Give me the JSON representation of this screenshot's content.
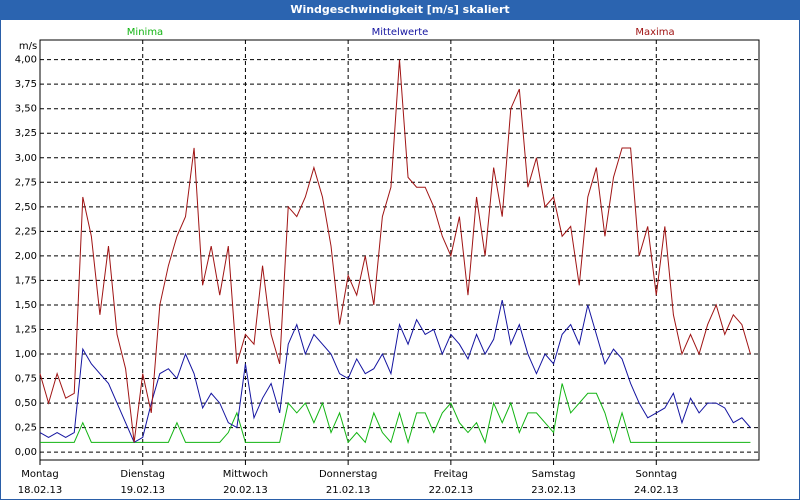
{
  "chart_data": {
    "type": "line",
    "title": "Windgeschwindigkeit [m/s] skaliert",
    "y_label": "m/s",
    "days": [
      "Montag",
      "Dienstag",
      "Mittwoch",
      "Donnerstag",
      "Freitag",
      "Samstag",
      "Sonntag"
    ],
    "dates": [
      "18.02.13",
      "19.02.13",
      "20.02.13",
      "21.02.13",
      "22.02.13",
      "23.02.13",
      "24.02.13"
    ],
    "x": [
      0,
      2,
      4,
      6,
      8,
      10,
      12,
      14,
      16,
      18,
      20,
      22,
      24,
      26,
      28,
      30,
      32,
      34,
      36,
      38,
      40,
      42,
      44,
      46,
      48,
      50,
      52,
      54,
      56,
      58,
      60,
      62,
      64,
      66,
      68,
      70,
      72,
      74,
      76,
      78,
      80,
      82,
      84,
      86,
      88,
      90,
      92,
      94,
      96,
      98,
      100,
      102,
      104,
      106,
      108,
      110,
      112,
      114,
      116,
      118,
      120,
      122,
      124,
      126,
      128,
      130,
      132,
      134,
      136,
      138,
      140,
      142,
      144,
      146,
      148,
      150,
      152,
      154,
      156,
      158,
      160,
      162,
      164,
      166
    ],
    "xlim": [
      0,
      168
    ],
    "xticks": [
      0,
      24,
      48,
      72,
      96,
      120,
      144
    ],
    "ylim": [
      -0.08,
      4.2
    ],
    "yticks": [
      {
        "value": 0,
        "label": "0,00"
      },
      {
        "value": 0.25,
        "label": "0,25"
      },
      {
        "value": 0.5,
        "label": "0,50"
      },
      {
        "value": 0.75,
        "label": "0,75"
      },
      {
        "value": 1,
        "label": "1,00"
      },
      {
        "value": 1.25,
        "label": "1,25"
      },
      {
        "value": 1.5,
        "label": "1,50"
      },
      {
        "value": 1.75,
        "label": "1,75"
      },
      {
        "value": 2,
        "label": "2,00"
      },
      {
        "value": 2.25,
        "label": "2,25"
      },
      {
        "value": 2.5,
        "label": "2,50"
      },
      {
        "value": 2.75,
        "label": "2,75"
      },
      {
        "value": 3,
        "label": "3,00"
      },
      {
        "value": 3.25,
        "label": "3,25"
      },
      {
        "value": 3.5,
        "label": "3,50"
      },
      {
        "value": 3.75,
        "label": "3,75"
      },
      {
        "value": 4,
        "label": "4,00"
      }
    ],
    "grid": true,
    "series": [
      {
        "name": "Minima",
        "color": "#12b412",
        "values": [
          0.1,
          0.1,
          0.1,
          0.1,
          0.1,
          0.3,
          0.1,
          0.1,
          0.1,
          0.1,
          0.1,
          0.1,
          0.1,
          0.1,
          0.1,
          0.1,
          0.3,
          0.1,
          0.1,
          0.1,
          0.1,
          0.1,
          0.2,
          0.4,
          0.1,
          0.1,
          0.1,
          0.1,
          0.1,
          0.5,
          0.4,
          0.5,
          0.3,
          0.5,
          0.2,
          0.4,
          0.1,
          0.2,
          0.1,
          0.4,
          0.2,
          0.1,
          0.4,
          0.1,
          0.4,
          0.4,
          0.2,
          0.4,
          0.5,
          0.3,
          0.2,
          0.3,
          0.1,
          0.5,
          0.3,
          0.5,
          0.2,
          0.4,
          0.4,
          0.3,
          0.2,
          0.7,
          0.4,
          0.5,
          0.6,
          0.6,
          0.4,
          0.1,
          0.4,
          0.1,
          0.1,
          0.1,
          0.1,
          0.1,
          0.1,
          0.1,
          0.1,
          0.1,
          0.1,
          0.1,
          0.1,
          0.1,
          0.1,
          0.1
        ]
      },
      {
        "name": "Mittelwerte",
        "color": "#1414a0",
        "values": [
          0.2,
          0.15,
          0.2,
          0.15,
          0.2,
          1.05,
          0.9,
          0.8,
          0.7,
          0.5,
          0.3,
          0.1,
          0.15,
          0.5,
          0.8,
          0.85,
          0.75,
          1.0,
          0.8,
          0.45,
          0.6,
          0.5,
          0.3,
          0.25,
          0.9,
          0.35,
          0.55,
          0.7,
          0.4,
          1.1,
          1.3,
          1.0,
          1.2,
          1.1,
          1.0,
          0.8,
          0.75,
          0.95,
          0.8,
          0.85,
          1.0,
          0.8,
          1.3,
          1.1,
          1.35,
          1.2,
          1.25,
          1.0,
          1.2,
          1.1,
          0.95,
          1.2,
          1.0,
          1.15,
          1.55,
          1.1,
          1.3,
          1.0,
          0.8,
          1.0,
          0.9,
          1.2,
          1.3,
          1.1,
          1.5,
          1.2,
          0.9,
          1.05,
          0.95,
          0.7,
          0.5,
          0.35,
          0.4,
          0.45,
          0.6,
          0.3,
          0.55,
          0.4,
          0.5,
          0.5,
          0.45,
          0.3,
          0.35,
          0.25
        ]
      },
      {
        "name": "Maxima",
        "color": "#a01414",
        "values": [
          0.8,
          0.5,
          0.8,
          0.55,
          0.6,
          2.6,
          2.2,
          1.4,
          2.1,
          1.2,
          0.85,
          0.1,
          0.8,
          0.4,
          1.5,
          1.9,
          2.2,
          2.4,
          3.1,
          1.7,
          2.1,
          1.6,
          2.1,
          0.9,
          1.2,
          1.1,
          1.9,
          1.2,
          0.9,
          2.5,
          2.4,
          2.6,
          2.9,
          2.6,
          2.1,
          1.3,
          1.8,
          1.6,
          2.0,
          1.5,
          2.4,
          2.7,
          4.0,
          2.8,
          2.7,
          2.7,
          2.5,
          2.2,
          2.0,
          2.4,
          1.6,
          2.6,
          2.0,
          2.9,
          2.4,
          3.5,
          3.7,
          2.7,
          3.0,
          2.5,
          2.6,
          2.2,
          2.3,
          1.7,
          2.6,
          2.9,
          2.2,
          2.8,
          3.1,
          3.1,
          2.0,
          2.3,
          1.6,
          2.3,
          1.4,
          1.0,
          1.2,
          1.0,
          1.3,
          1.5,
          1.2,
          1.4,
          1.3,
          1.0
        ]
      }
    ]
  }
}
